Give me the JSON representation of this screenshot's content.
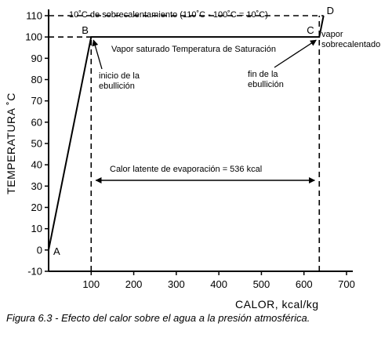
{
  "chart_data": {
    "type": "line",
    "title": "",
    "xlabel": "CALOR,  kcal/kg",
    "ylabel": "TEMPERATURA  ˚C",
    "xlim": [
      0,
      700
    ],
    "ylim": [
      -10,
      110
    ],
    "x_ticks": [
      100,
      200,
      300,
      400,
      500,
      600,
      700
    ],
    "y_ticks": [
      -10,
      0,
      10,
      20,
      30,
      40,
      50,
      60,
      70,
      80,
      90,
      100,
      110
    ],
    "grid": false,
    "series": [
      {
        "points": [
          {
            "x": 0,
            "y": 0,
            "label": "A"
          },
          {
            "x": 100,
            "y": 100,
            "label": "B"
          },
          {
            "x": 636,
            "y": 100,
            "label": "C"
          },
          {
            "x": 646,
            "y": 110,
            "label": "D"
          }
        ]
      }
    ],
    "reference_lines": [
      {
        "orientation": "vertical",
        "x": 100,
        "y_from": -10,
        "y_to": 100,
        "style": "dashed"
      },
      {
        "orientation": "vertical",
        "x": 636,
        "y_from": -10,
        "y_to": 110,
        "style": "dashed"
      },
      {
        "orientation": "horizontal",
        "y": 100,
        "x_from": 0,
        "x_to": 100,
        "style": "dashed"
      },
      {
        "orientation": "horizontal",
        "y": 110,
        "x_from": 0,
        "x_to": 646,
        "style": "dashed"
      }
    ],
    "annotations": {
      "superheat": "10˚C de sobrecalentamiento (110˚C - 100˚C = 10˚C)",
      "saturated_vapor": "Vapor saturado Temperatura de Saturación",
      "boil_start_line1": "inicio de la",
      "boil_start_line2": "ebullición",
      "boil_end_line1": "fin de la",
      "boil_end_line2": "ebullición",
      "superheated_line1": "vapor",
      "superheated_line2": "sobrecalentado",
      "latent_heat": "Calor latente de evaporación = 536 kcal"
    }
  },
  "caption": "Figura 6.3 - Efecto del calor sobre el agua a la presión atmosférica."
}
